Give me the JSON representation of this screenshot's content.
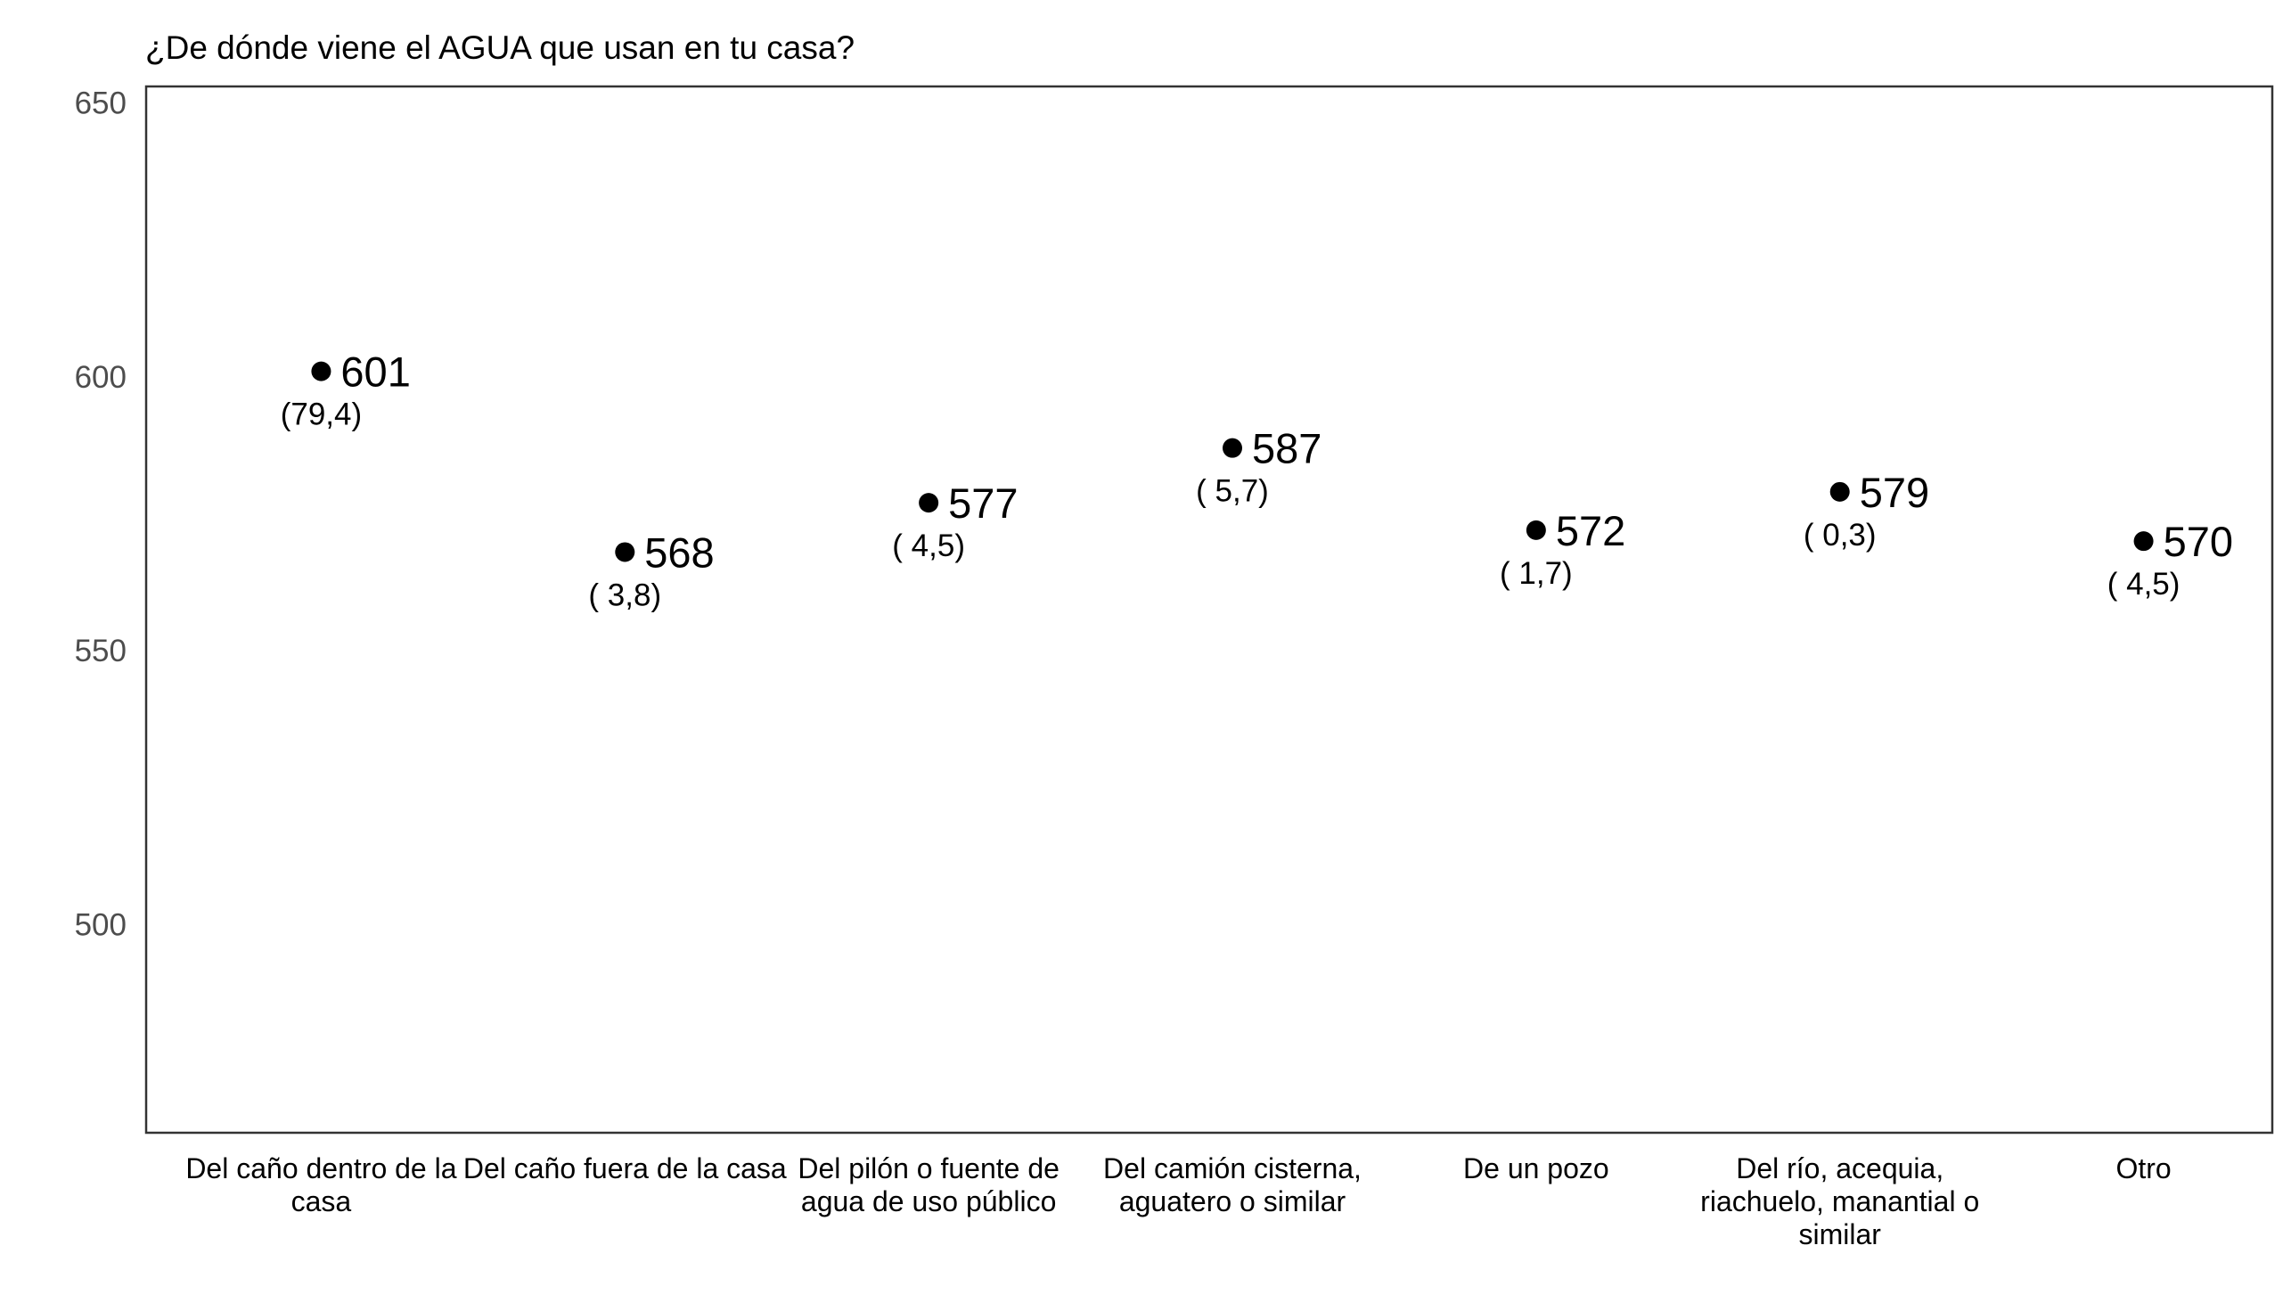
{
  "chart_data": {
    "type": "scatter",
    "title": "¿De dónde viene el AGUA que usan en tu casa?",
    "xlabel": "",
    "ylabel": "",
    "ylim": [
      462,
      653
    ],
    "yticks": [
      "500",
      "550",
      "600",
      "650"
    ],
    "grid": false,
    "categories": [
      [
        "Del caño dentro de la",
        "casa"
      ],
      [
        "Del caño fuera de la casa"
      ],
      [
        "Del pilón o fuente de",
        "agua de uso público"
      ],
      [
        "Del camión cisterna,",
        "aguatero o similar"
      ],
      [
        "De un pozo"
      ],
      [
        "Del río, acequia,",
        "riachuelo, manantial o",
        "similar"
      ],
      [
        "Otro"
      ]
    ],
    "values": [
      601,
      568,
      577,
      587,
      572,
      579,
      570
    ],
    "value_labels": [
      "601",
      "568",
      "577",
      "587",
      "572",
      "579",
      "570"
    ],
    "percent_labels": [
      "(79,4)",
      "( 3,8)",
      "( 4,5)",
      "( 5,7)",
      "( 1,7)",
      "( 0,3)",
      "( 4,5)"
    ]
  }
}
